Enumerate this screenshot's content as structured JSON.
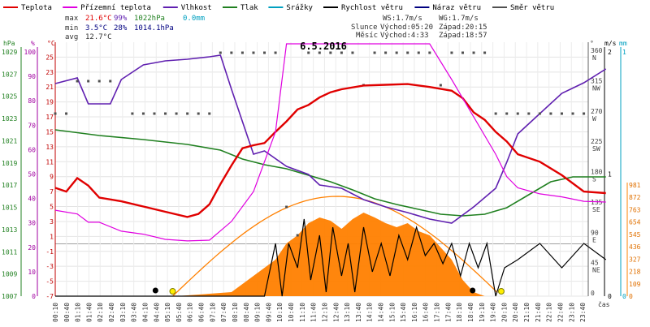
{
  "date_title": "6.5.2016",
  "legend": [
    {
      "label": "Teplota",
      "color": "#e00000"
    },
    {
      "label": "Přízemní teplota",
      "color": "#e000e0"
    },
    {
      "label": "Vlhkost",
      "color": "#6020b0"
    },
    {
      "label": "Tlak",
      "color": "#208020"
    },
    {
      "label": "Srážky",
      "color": "#00a0c0"
    },
    {
      "label": "Rychlost větru",
      "color": "#000000"
    },
    {
      "label": "Náraz větru",
      "color": "#000080"
    },
    {
      "label": "Směr větru",
      "color": "#505050"
    }
  ],
  "stats": {
    "max": {
      "label": "max",
      "temp": "21.6°C",
      "hum": "99%",
      "press": "1022hPa",
      "rain": "0.0mm"
    },
    "min": {
      "label": "min",
      "temp": "3.5°C",
      "hum": "28%",
      "press": "1014.1hPa"
    },
    "avg": {
      "label": "avg",
      "temp": "12.7°C"
    }
  },
  "wind_info": {
    "ws": "WS:1.7m/s",
    "wg": "WG:1.7m/s"
  },
  "sun": {
    "label": "Slunce",
    "rise": "Východ:05:20",
    "set": "Západ:20:15"
  },
  "moon": {
    "label": "Měsíc",
    "rise": "Východ:4:33",
    "set": "Západ:18:57"
  },
  "colors": {
    "temp": "#e00000",
    "ground": "#e000e0",
    "humidity": "#6020b0",
    "pressure": "#208020",
    "rain": "#00a0c0",
    "wind": "#000000",
    "gust": "#000080",
    "direction": "#505050",
    "solar": "#ff8000",
    "sun_curve": "#ff8000"
  },
  "chart_data": {
    "type": "line",
    "x_axis": {
      "label": "čas",
      "ticks": [
        "00:10",
        "00:40",
        "01:10",
        "01:40",
        "02:10",
        "02:40",
        "03:10",
        "03:40",
        "04:10",
        "04:40",
        "05:10",
        "05:40",
        "06:10",
        "06:40",
        "07:10",
        "07:40",
        "08:10",
        "08:40",
        "09:10",
        "09:40",
        "10:10",
        "10:40",
        "11:10",
        "11:40",
        "12:10",
        "12:40",
        "13:10",
        "13:40",
        "14:10",
        "14:40",
        "15:10",
        "15:40",
        "16:10",
        "16:40",
        "17:10",
        "17:40",
        "18:10",
        "18:40",
        "19:10",
        "19:40",
        "20:10",
        "20:40",
        "21:10",
        "21:40",
        "22:10",
        "22:40",
        "23:10",
        "23:40"
      ]
    },
    "axes": {
      "pressure": {
        "unit": "hPa",
        "ticks": [
          "1007",
          "1009",
          "1011",
          "1013",
          "1015",
          "1017",
          "1019",
          "1021",
          "1023",
          "1025",
          "1027",
          "1029"
        ]
      },
      "humidity": {
        "unit": "%",
        "ticks": [
          "0",
          "10",
          "20",
          "30",
          "40",
          "50",
          "60",
          "70",
          "80",
          "90",
          "100"
        ]
      },
      "temperature": {
        "unit": "°C",
        "ticks": [
          "-7",
          "-5",
          "-3",
          "-1",
          "1",
          "3",
          "5",
          "7",
          "9",
          "11",
          "13",
          "15",
          "17",
          "19",
          "21",
          "23",
          "25"
        ]
      },
      "direction": {
        "unit": "°",
        "ticks": [
          "0",
          "45 NE",
          "90 E",
          "135 SE",
          "180 S",
          "225 SW",
          "270 W",
          "315 NW",
          "360 N"
        ]
      },
      "wind": {
        "unit": "m/s",
        "ticks": [
          "0",
          "1",
          "2"
        ]
      },
      "rain": {
        "unit": "mm",
        "ticks": [
          "0",
          "1"
        ]
      },
      "solar": {
        "ticks": [
          "0",
          "109",
          "218",
          "327",
          "436",
          "545",
          "654",
          "763",
          "872",
          "981"
        ]
      }
    },
    "series": [
      {
        "name": "Teplota",
        "unit": "°C",
        "points": [
          [
            0,
            7.5
          ],
          [
            0.5,
            7.0
          ],
          [
            1,
            8.8
          ],
          [
            1.5,
            7.8
          ],
          [
            2,
            6.2
          ],
          [
            3,
            5.7
          ],
          [
            4,
            5.0
          ],
          [
            5,
            4.3
          ],
          [
            6,
            3.6
          ],
          [
            6.5,
            4.0
          ],
          [
            7,
            5.3
          ],
          [
            7.5,
            8.0
          ],
          [
            8,
            10.5
          ],
          [
            8.5,
            12.8
          ],
          [
            9,
            13.2
          ],
          [
            9.5,
            13.5
          ],
          [
            10,
            15.0
          ],
          [
            10.5,
            16.4
          ],
          [
            11,
            18.0
          ],
          [
            11.5,
            18.6
          ],
          [
            12,
            19.6
          ],
          [
            12.5,
            20.3
          ],
          [
            13,
            20.7
          ],
          [
            14,
            21.2
          ],
          [
            15,
            21.3
          ],
          [
            16,
            21.4
          ],
          [
            17,
            21.0
          ],
          [
            18,
            20.5
          ],
          [
            18.5,
            19.5
          ],
          [
            19,
            17.6
          ],
          [
            19.5,
            16.6
          ],
          [
            20,
            15.0
          ],
          [
            20.5,
            13.7
          ],
          [
            21,
            12.0
          ],
          [
            22,
            11.0
          ],
          [
            23,
            9.2
          ],
          [
            24,
            7.0
          ],
          [
            25,
            6.8
          ]
        ]
      },
      {
        "name": "Přízemní teplota",
        "unit": "°C",
        "points": [
          [
            0,
            4.5
          ],
          [
            1,
            4.0
          ],
          [
            1.5,
            2.9
          ],
          [
            2,
            2.9
          ],
          [
            3,
            1.7
          ],
          [
            4,
            1.3
          ],
          [
            5,
            0.6
          ],
          [
            6,
            0.4
          ],
          [
            7,
            0.5
          ],
          [
            8,
            3.0
          ],
          [
            9,
            7.0
          ],
          [
            10,
            15.0
          ],
          [
            10.5,
            28.0
          ],
          [
            11,
            28.0
          ],
          [
            12,
            27.0
          ],
          [
            13,
            28.0
          ],
          [
            14,
            28.0
          ],
          [
            15,
            28.0
          ],
          [
            16,
            28.0
          ],
          [
            17,
            27.5
          ],
          [
            18,
            22.0
          ],
          [
            19,
            17.0
          ],
          [
            20,
            12.0
          ],
          [
            20.5,
            9.0
          ],
          [
            21,
            7.5
          ],
          [
            22,
            6.7
          ],
          [
            23,
            6.3
          ],
          [
            24,
            5.7
          ],
          [
            25,
            5.6
          ]
        ]
      }
    ]
  }
}
